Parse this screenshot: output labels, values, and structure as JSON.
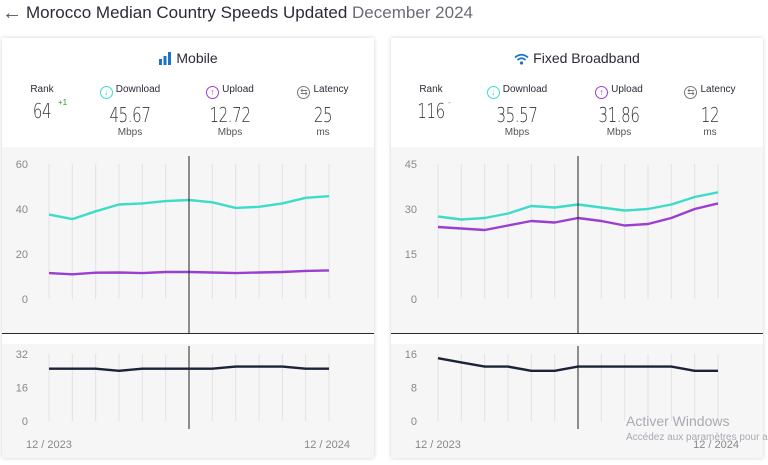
{
  "header": {
    "back_icon": "arrow-left-icon",
    "title": "Morocco Median Country Speeds Updated",
    "date": "December 2024"
  },
  "colors": {
    "download": "#3ddcc8",
    "upload": "#9a3fd0",
    "latency": "#1c2238",
    "rank_delta_up": "#2a9d2a"
  },
  "mobile": {
    "title": "Mobile",
    "icon": "signal-bars-icon",
    "rank_label": "Rank",
    "rank": "64",
    "rank_delta": "+1",
    "download_label": "Download",
    "download": "45.67",
    "download_unit": "Mbps",
    "upload_label": "Upload",
    "upload": "12.72",
    "upload_unit": "Mbps",
    "latency_label": "Latency",
    "latency": "25",
    "latency_unit": "ms"
  },
  "fixed": {
    "title": "Fixed Broadband",
    "icon": "wifi-icon",
    "rank_label": "Rank",
    "rank": "116",
    "rank_delta": "-",
    "download_label": "Download",
    "download": "35.57",
    "download_unit": "Mbps",
    "upload_label": "Upload",
    "upload": "31.86",
    "upload_unit": "Mbps",
    "latency_label": "Latency",
    "latency": "12",
    "latency_unit": "ms"
  },
  "x_labels": {
    "start": "12 / 2023",
    "end": "12 / 2024"
  },
  "chart_data": [
    {
      "type": "line",
      "panel": "mobile-speeds",
      "x": [
        "12/2023",
        "1/2024",
        "2/2024",
        "3/2024",
        "4/2024",
        "5/2024",
        "6/2024",
        "7/2024",
        "8/2024",
        "9/2024",
        "10/2024",
        "11/2024",
        "12/2024"
      ],
      "y_ticks": [
        "0",
        "20",
        "40",
        "60"
      ],
      "ylim": [
        0,
        60
      ],
      "series": [
        {
          "key": "download",
          "values": [
            37.5,
            35.5,
            39,
            42,
            42.5,
            43.5,
            44,
            43,
            40.5,
            41,
            42.5,
            45,
            45.67
          ]
        },
        {
          "key": "upload",
          "values": [
            11.5,
            11,
            11.7,
            11.8,
            11.5,
            12,
            12,
            11.8,
            11.5,
            11.8,
            12,
            12.5,
            12.72
          ]
        }
      ],
      "marker_index": 6
    },
    {
      "type": "line",
      "panel": "mobile-latency",
      "x": [
        "12/2023",
        "1/2024",
        "2/2024",
        "3/2024",
        "4/2024",
        "5/2024",
        "6/2024",
        "7/2024",
        "8/2024",
        "9/2024",
        "10/2024",
        "11/2024",
        "12/2024"
      ],
      "y_ticks": [
        "0",
        "16",
        "32"
      ],
      "ylim": [
        0,
        32
      ],
      "series": [
        {
          "key": "latency",
          "values": [
            25,
            25,
            25,
            24,
            25,
            25,
            25,
            25,
            26,
            26,
            26,
            25,
            25
          ]
        }
      ],
      "marker_index": 6
    },
    {
      "type": "line",
      "panel": "fixed-speeds",
      "x": [
        "12/2023",
        "1/2024",
        "2/2024",
        "3/2024",
        "4/2024",
        "5/2024",
        "6/2024",
        "7/2024",
        "8/2024",
        "9/2024",
        "10/2024",
        "11/2024",
        "12/2024"
      ],
      "y_ticks": [
        "0",
        "15",
        "30",
        "45"
      ],
      "ylim": [
        0,
        45
      ],
      "series": [
        {
          "key": "download",
          "values": [
            27.5,
            26.5,
            27,
            28.5,
            31,
            30.5,
            31.5,
            30.5,
            29.5,
            30,
            31.5,
            34,
            35.57
          ]
        },
        {
          "key": "upload",
          "values": [
            24,
            23.5,
            23,
            24.5,
            26,
            25.5,
            27,
            26,
            24.5,
            25,
            27,
            30,
            31.86
          ]
        }
      ],
      "marker_index": 6
    },
    {
      "type": "line",
      "panel": "fixed-latency",
      "x": [
        "12/2023",
        "1/2024",
        "2/2024",
        "3/2024",
        "4/2024",
        "5/2024",
        "6/2024",
        "7/2024",
        "8/2024",
        "9/2024",
        "10/2024",
        "11/2024",
        "12/2024"
      ],
      "y_ticks": [
        "0",
        "8",
        "16"
      ],
      "ylim": [
        0,
        16
      ],
      "series": [
        {
          "key": "latency",
          "values": [
            15,
            14,
            13,
            13,
            12,
            12,
            13,
            13,
            13,
            13,
            13,
            12,
            12
          ]
        }
      ],
      "marker_index": 6
    }
  ],
  "watermark": {
    "line1": "Activer Windows",
    "line2": "Accédez aux paramètres pour activer Windows."
  }
}
